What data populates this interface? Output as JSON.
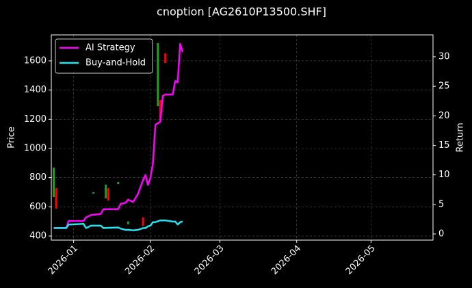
{
  "chart_data": {
    "type": "candlestick",
    "title": "cnoption [AG2610P13500.SHF]",
    "ylabel": "Price",
    "y2label": "Return",
    "xlim": [
      "2025-12-23",
      "2026-05-26"
    ],
    "xticks": [
      {
        "value": "2026-01-01",
        "label": "2026-01"
      },
      {
        "value": "2026-02-01",
        "label": "2026-02"
      },
      {
        "value": "2026-03-01",
        "label": "2026-03"
      },
      {
        "value": "2026-04-01",
        "label": "2026-04"
      },
      {
        "value": "2026-05-01",
        "label": "2026-05"
      }
    ],
    "ylim": [
      372,
      1778
    ],
    "yticks": [
      400,
      600,
      800,
      1000,
      1200,
      1400,
      1600
    ],
    "y2lim": [
      -1.04,
      33.7
    ],
    "y2ticks": [
      0,
      5,
      10,
      15,
      20,
      25,
      30
    ],
    "grid": true,
    "legend": "upper left",
    "candles": {
      "up_color": "#1fa31f",
      "down_color": "#ff0000",
      "x": [
        "2025-12-24",
        "2025-12-25",
        "2026-01-09",
        "2026-01-14",
        "2026-01-15",
        "2026-01-19",
        "2026-01-23",
        "2026-01-29",
        "2026-02-04",
        "2026-02-05",
        "2026-02-07"
      ],
      "open": [
        667,
        728,
        690,
        658,
        728,
        756,
        480,
        527,
        1290,
        1333,
        1652
      ],
      "high": [
        868,
        728,
        700,
        752,
        728,
        770,
        500,
        530,
        1722,
        1333,
        1652
      ],
      "low": [
        667,
        588,
        690,
        658,
        644,
        756,
        480,
        470,
        1290,
        1197,
        1586
      ],
      "close": [
        868,
        588,
        700,
        752,
        644,
        770,
        500,
        470,
        1722,
        1197,
        1586
      ]
    },
    "x": [
      "2025-12-24",
      "2025-12-29",
      "2025-12-30",
      "2026-01-05",
      "2026-01-06",
      "2026-01-08",
      "2026-01-12",
      "2026-01-13",
      "2026-01-19",
      "2026-01-20",
      "2026-01-22",
      "2026-01-23",
      "2026-01-25",
      "2026-01-27",
      "2026-01-29",
      "2026-01-30",
      "2026-01-31",
      "2026-02-01",
      "2026-02-02",
      "2026-02-03",
      "2026-02-05",
      "2026-02-06",
      "2026-02-07",
      "2026-02-10",
      "2026-02-11",
      "2026-02-12",
      "2026-02-13",
      "2026-02-14"
    ],
    "series": [
      {
        "name": "AI Strategy",
        "color": "#ff00ff",
        "axis": "y2",
        "values": [
          1.0,
          1.0,
          2.2,
          2.2,
          2.8,
          3.2,
          3.4,
          4.2,
          4.2,
          5.1,
          5.3,
          5.8,
          5.4,
          6.8,
          9.1,
          10.0,
          8.3,
          9.5,
          12.0,
          18.5,
          19.0,
          23.4,
          23.6,
          23.6,
          25.9,
          25.7,
          32.2,
          30.8
        ]
      },
      {
        "name": "Buy-and-Hold",
        "color": "#22e5f0",
        "axis": "y2",
        "values": [
          1.0,
          1.0,
          1.6,
          1.7,
          1.0,
          1.4,
          1.4,
          1.0,
          1.1,
          0.9,
          0.7,
          0.7,
          0.6,
          0.7,
          1.0,
          1.0,
          1.3,
          1.4,
          2.0,
          2.0,
          2.3,
          2.3,
          2.3,
          2.1,
          2.1,
          1.6,
          2.0,
          2.1
        ]
      }
    ]
  }
}
